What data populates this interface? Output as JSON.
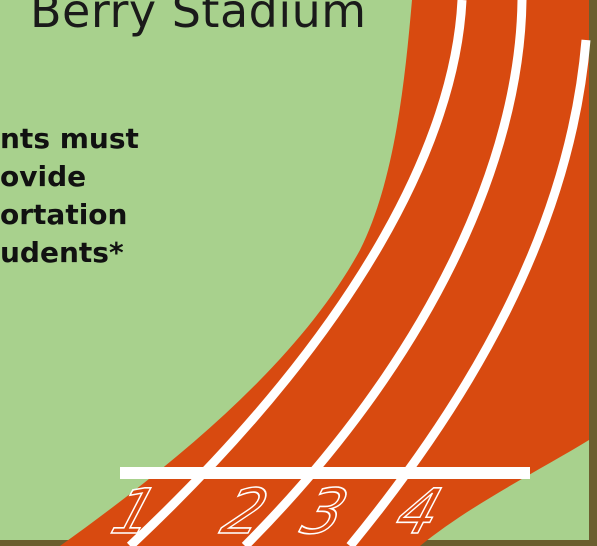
{
  "title": "Berry Stadium",
  "notice": {
    "lines": [
      "nts must",
      "ovide",
      "ortation",
      "udents*"
    ]
  },
  "lanes": [
    "1",
    "2",
    "3",
    "4"
  ],
  "colors": {
    "field": "#a8d18d",
    "track": "#d84a10",
    "lines": "#ffffff",
    "border": "#6b5e2e"
  }
}
